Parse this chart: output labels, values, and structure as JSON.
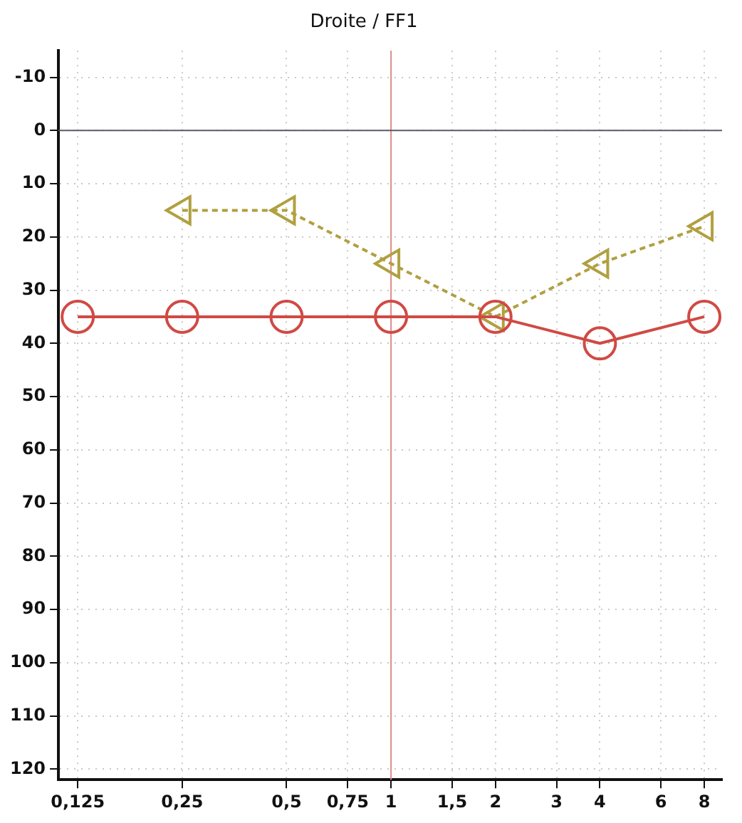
{
  "chart_data": {
    "type": "line",
    "title": "Droite / FF1",
    "log": "x",
    "grid": true,
    "legend": false,
    "x": [
      0.125,
      0.25,
      0.5,
      1,
      2,
      4,
      8
    ],
    "xlim": [
      0.11,
      9
    ],
    "xticks": [
      {
        "value": 0.125,
        "label": "0,125"
      },
      {
        "value": 0.25,
        "label": "0,25"
      },
      {
        "value": 0.5,
        "label": "0,5"
      },
      {
        "value": 0.75,
        "label": "0,75"
      },
      1,
      {
        "value": 1.5,
        "label": "1,5"
      },
      2,
      3,
      4,
      6,
      8
    ],
    "ylim": [
      122,
      -15
    ],
    "yticks": [
      -10,
      0,
      10,
      20,
      30,
      40,
      50,
      60,
      70,
      80,
      90,
      100,
      110,
      120
    ],
    "series": [
      {
        "color": "#d04a44",
        "marker": "circle",
        "line_style": "solid",
        "values": [
          35,
          35,
          35,
          35,
          35,
          40,
          35
        ]
      },
      {
        "color": "#b0a040",
        "marker": "triangle",
        "line_style": "dashed",
        "x": [
          0.25,
          0.5,
          1,
          2,
          4,
          8
        ],
        "values": [
          15,
          15,
          25,
          35,
          25,
          18
        ]
      }
    ],
    "ref_lines": [
      {
        "axis": "x",
        "value": 1,
        "color": "#e08a8a"
      },
      {
        "axis": "y",
        "value": 0,
        "color": "#5a5a6a"
      }
    ]
  }
}
